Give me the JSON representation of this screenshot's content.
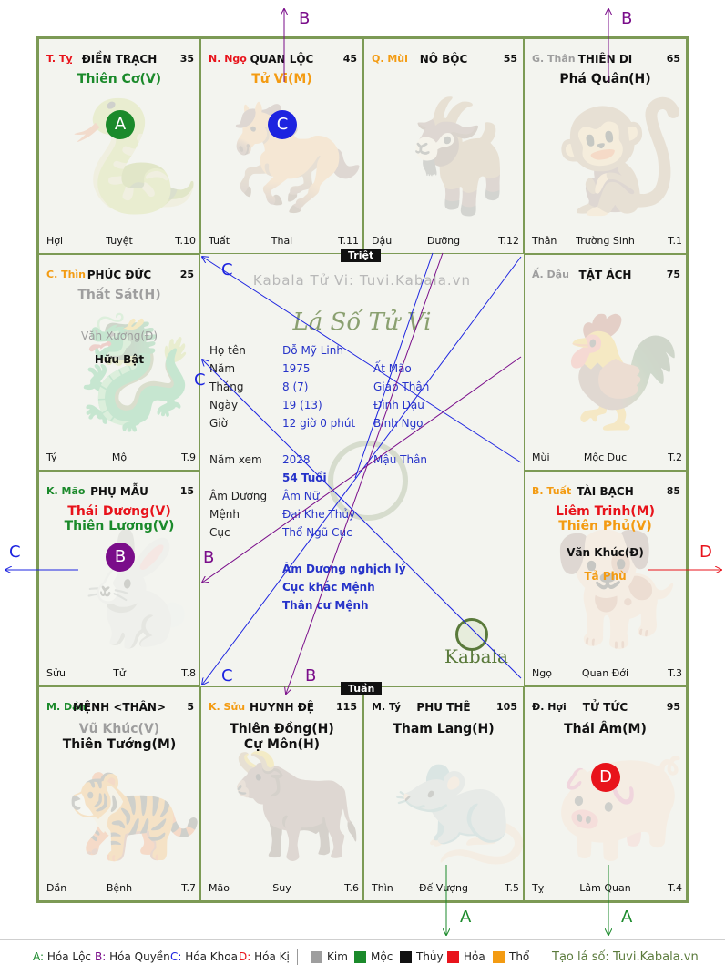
{
  "colors": {
    "green": "#1b8a2b",
    "red": "#e8131b",
    "blue": "#1d24e0",
    "purple": "#7a0d8a",
    "orange": "#f39b12",
    "gray": "#9e9e9e",
    "board_border": "#7c9a55"
  },
  "cells": [
    {
      "id": "ty",
      "pos": "T. Tỵ",
      "pos_color": "#e8131b",
      "title": "ĐIỀN TRẠCH",
      "num": "35",
      "stars": [
        {
          "t": "Thiên Cơ(V)",
          "c": "#1b8a2b",
          "size": "s1"
        }
      ],
      "f_left": "Hợi",
      "f_mid": "Tuyệt",
      "f_right": "T.10",
      "bg_icon": "🐍"
    },
    {
      "id": "ngo",
      "pos": "N. Ngọ",
      "pos_color": "#e8131b",
      "title": "QUAN LỘC",
      "num": "45",
      "stars": [
        {
          "t": "Tử Vi(M)",
          "c": "#f39b12",
          "size": "s1"
        }
      ],
      "f_left": "Tuất",
      "f_mid": "Thai",
      "f_right": "T.11",
      "bg_icon": "🐎"
    },
    {
      "id": "mui",
      "pos": "Q. Mùi",
      "pos_color": "#f39b12",
      "title": "NÔ BỘC",
      "num": "55",
      "stars": [],
      "f_left": "Dậu",
      "f_mid": "Dưỡng",
      "f_right": "T.12",
      "bg_icon": "🐐"
    },
    {
      "id": "than",
      "pos": "G. Thân",
      "pos_color": "#9e9e9e",
      "title": "THIÊN DI",
      "num": "65",
      "stars": [
        {
          "t": "Phá Quân(H)",
          "c": "#111111",
          "size": "s1"
        }
      ],
      "f_left": "Thân",
      "f_mid": "Trường Sinh",
      "f_right": "T.1",
      "bg_icon": "🐒"
    },
    {
      "id": "thin",
      "pos": "C. Thìn",
      "pos_color": "#f39b12",
      "title": "PHÚC ĐỨC",
      "num": "25",
      "stars": [
        {
          "t": "Thất Sát(H)",
          "c": "#9e9e9e",
          "size": "s1"
        },
        {
          "t": "Văn Xương(Đ)",
          "c": "#9e9e9e",
          "size": "s2"
        },
        {
          "t": "Hữu Bật",
          "c": "#111111",
          "size": "s2"
        }
      ],
      "f_left": "Tý",
      "f_mid": "Mộ",
      "f_right": "T.9",
      "bg_icon": "🐉"
    },
    {
      "id": "dau",
      "pos": "Ấ. Dậu",
      "pos_color": "#9e9e9e",
      "title": "TẬT ÁCH",
      "num": "75",
      "stars": [],
      "f_left": "Mùi",
      "f_mid": "Mộc Dục",
      "f_right": "T.2",
      "bg_icon": "🐓"
    },
    {
      "id": "mao",
      "pos": "K. Mão",
      "pos_color": "#1b8a2b",
      "title": "PHỤ MẪU",
      "num": "15",
      "stars": [
        {
          "t": "Thái Dương(V)",
          "c": "#e8131b",
          "size": "s1"
        },
        {
          "t": "Thiên Lương(V)",
          "c": "#1b8a2b",
          "size": "s1"
        }
      ],
      "f_left": "Sửu",
      "f_mid": "Tử",
      "f_right": "T.8",
      "bg_icon": "🐇"
    },
    {
      "id": "tuat",
      "pos": "B. Tuất",
      "pos_color": "#f39b12",
      "title": "TÀI BẠCH",
      "num": "85",
      "stars": [
        {
          "t": "Liêm Trinh(M)",
          "c": "#e8131b",
          "size": "s1"
        },
        {
          "t": "Thiên Phủ(V)",
          "c": "#f39b12",
          "size": "s1"
        },
        {
          "t": "Văn Khúc(Đ)",
          "c": "#111111",
          "size": "s2"
        },
        {
          "t": "Tả Phù",
          "c": "#f39b12",
          "size": "s2"
        }
      ],
      "f_left": "Ngọ",
      "f_mid": "Quan Đới",
      "f_right": "T.3",
      "bg_icon": "🐕"
    },
    {
      "id": "dan",
      "pos": "M. Dần",
      "pos_color": "#1b8a2b",
      "title": "MỆNH <THÂN>",
      "num": "5",
      "stars": [
        {
          "t": "Vũ Khúc(V)",
          "c": "#9e9e9e",
          "size": "s1"
        },
        {
          "t": "Thiên Tướng(M)",
          "c": "#111111",
          "size": "s1"
        }
      ],
      "f_left": "Dần",
      "f_mid": "Bệnh",
      "f_right": "T.7",
      "bg_icon": "🐅"
    },
    {
      "id": "suu",
      "pos": "K. Sửu",
      "pos_color": "#f39b12",
      "title": "HUYNH ĐỆ",
      "num": "115",
      "stars": [
        {
          "t": "Thiên Đồng(H)",
          "c": "#111111",
          "size": "s1"
        },
        {
          "t": "Cự Môn(H)",
          "c": "#111111",
          "size": "s1"
        }
      ],
      "f_left": "Mão",
      "f_mid": "Suy",
      "f_right": "T.6",
      "bg_icon": "🐂"
    },
    {
      "id": "ty2",
      "pos": "M. Tý",
      "pos_color": "#111111",
      "title": "PHU THÊ",
      "num": "105",
      "stars": [
        {
          "t": "Tham Lang(H)",
          "c": "#111111",
          "size": "s1"
        }
      ],
      "f_left": "Thìn",
      "f_mid": "Đế Vượng",
      "f_right": "T.5",
      "bg_icon": "🐀"
    },
    {
      "id": "hoi",
      "pos": "Đ. Hợi",
      "pos_color": "#111111",
      "title": "TỬ TỨC",
      "num": "95",
      "stars": [
        {
          "t": "Thái Âm(M)",
          "c": "#111111",
          "size": "s1"
        }
      ],
      "f_left": "Tỵ",
      "f_mid": "Lâm Quan",
      "f_right": "T.4",
      "bg_icon": "🐖"
    }
  ],
  "markers": [
    {
      "id": "a",
      "label": "A",
      "color": "#1b8a2b"
    },
    {
      "id": "c",
      "label": "C",
      "color": "#1d24e0"
    },
    {
      "id": "b",
      "label": "B",
      "color": "#7a0d8a"
    },
    {
      "id": "d",
      "label": "D",
      "color": "#e8131b"
    }
  ],
  "center": {
    "triet": "Triệt",
    "tuan": "Tuần",
    "watermark": "Kabala Tử Vi: Tuvi.Kabala.vn",
    "heading": "Lá Số Tử Vi",
    "logo_text": "Kabala",
    "rows": [
      {
        "label": "Họ tên",
        "v1": "Đỗ Mỹ Linh",
        "v2": ""
      },
      {
        "label": "Năm",
        "v1": "1975",
        "v2": "Ất Mão"
      },
      {
        "label": "Tháng",
        "v1": "8  (7)",
        "v2": "Giáp Thân"
      },
      {
        "label": "Ngày",
        "v1": "19  (13)",
        "v2": "Đinh Dậu"
      },
      {
        "label": "Giờ",
        "v1": "12 giờ 0 phút",
        "v2": "Bính Ngọ"
      },
      {
        "label": "Năm xem",
        "v1": "2028",
        "v2": "Mậu Thân"
      },
      {
        "label": "",
        "v1": "54 Tuổi",
        "v2": ""
      },
      {
        "label": "Âm Dương",
        "v1": "Âm Nữ",
        "v2": ""
      },
      {
        "label": "Mệnh",
        "v1": "Đại Khe Thủy",
        "v2": ""
      },
      {
        "label": "Cục",
        "v1": "Thổ Ngũ Cục",
        "v2": ""
      }
    ],
    "notes": [
      "Âm Dương nghịch lý",
      "Cục khắc Mệnh",
      "Thân cư Mệnh"
    ]
  },
  "arrow_labels": [
    {
      "t": "B",
      "c": "#7a0d8a"
    },
    {
      "t": "B",
      "c": "#7a0d8a"
    },
    {
      "t": "C",
      "c": "#1d24e0"
    },
    {
      "t": "D",
      "c": "#e8131b"
    },
    {
      "t": "A",
      "c": "#1b8a2b"
    },
    {
      "t": "A",
      "c": "#1b8a2b"
    },
    {
      "t": "C",
      "c": "#1d24e0"
    },
    {
      "t": "C",
      "c": "#1d24e0"
    },
    {
      "t": "B",
      "c": "#7a0d8a"
    },
    {
      "t": "C",
      "c": "#1d24e0"
    },
    {
      "t": "B",
      "c": "#7a0d8a"
    }
  ],
  "legend": {
    "items": [
      {
        "key": "A:",
        "text": "Hóa Lộc",
        "c": "#1b8a2b"
      },
      {
        "key": "B:",
        "text": "Hóa Quyền",
        "c": "#7a0d8a"
      },
      {
        "key": "C:",
        "text": "Hóa Khoa",
        "c": "#1d24e0"
      },
      {
        "key": "D:",
        "text": "Hóa Kị",
        "c": "#e8131b"
      }
    ],
    "elements": [
      {
        "text": "Kim",
        "c": "#9e9e9e"
      },
      {
        "text": "Mộc",
        "c": "#1b8a2b"
      },
      {
        "text": "Thủy",
        "c": "#111111"
      },
      {
        "text": "Hỏa",
        "c": "#e8131b"
      },
      {
        "text": "Thổ",
        "c": "#f39b12"
      }
    ],
    "credit": "Tạo lá số: Tuvi.Kabala.vn"
  }
}
